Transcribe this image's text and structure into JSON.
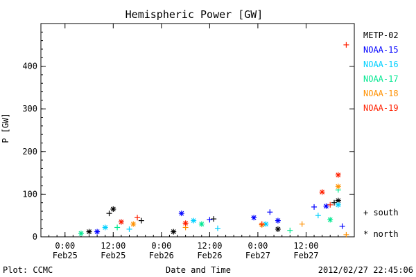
{
  "chart_data": {
    "type": "scatter",
    "title": "Hemispheric Power [GW]",
    "xlabel": "Date and Time",
    "ylabel": "P [GW]",
    "ylim": [
      0,
      500
    ],
    "yticks": [
      0,
      100,
      200,
      300,
      400
    ],
    "xlim": [
      "2012-02-24 18:00",
      "2012-02-28 00:00"
    ],
    "xticks": [
      {
        "at": "2012-02-25 00:00",
        "time": "0:00",
        "date": "Feb25"
      },
      {
        "at": "2012-02-25 12:00",
        "time": "12:00",
        "date": "Feb25"
      },
      {
        "at": "2012-02-26 00:00",
        "time": "0:00",
        "date": "Feb26"
      },
      {
        "at": "2012-02-26 12:00",
        "time": "12:00",
        "date": "Feb26"
      },
      {
        "at": "2012-02-27 00:00",
        "time": "0:00",
        "date": "Feb27"
      },
      {
        "at": "2012-02-27 12:00",
        "time": "12:00",
        "date": "Feb27"
      }
    ],
    "grid": false,
    "legend_position": "right",
    "marker_legend": [
      {
        "marker": "+",
        "label": "south"
      },
      {
        "marker": "*",
        "label": "north"
      }
    ],
    "series": [
      {
        "name": "METP-02",
        "color": "#000000",
        "x": [
          "2012-02-25 06:00",
          "2012-02-25 11:00",
          "2012-02-25 12:00",
          "2012-02-25 19:00",
          "2012-02-26 03:00",
          "2012-02-26 13:00",
          "2012-02-27 05:00",
          "2012-02-27 19:00",
          "2012-02-27 20:00"
        ],
        "y": [
          12,
          55,
          65,
          38,
          12,
          42,
          18,
          80,
          85
        ]
      },
      {
        "name": "NOAA-15",
        "color": "#0000ff",
        "x": [
          "2012-02-25 08:00",
          "2012-02-25 14:00",
          "2012-02-26 05:00",
          "2012-02-26 12:00",
          "2012-02-26 23:00",
          "2012-02-27 03:00",
          "2012-02-27 05:00",
          "2012-02-27 14:00",
          "2012-02-27 17:00",
          "2012-02-27 21:00"
        ],
        "y": [
          12,
          35,
          55,
          40,
          45,
          58,
          38,
          70,
          72,
          25
        ]
      },
      {
        "name": "NOAA-16",
        "color": "#00d0ff",
        "x": [
          "2012-02-25 10:00",
          "2012-02-25 16:00",
          "2012-02-26 08:00",
          "2012-02-26 14:00",
          "2012-02-27 02:00",
          "2012-02-27 15:00",
          "2012-02-27 20:00"
        ],
        "y": [
          22,
          18,
          38,
          20,
          30,
          50,
          75
        ]
      },
      {
        "name": "NOAA-17",
        "color": "#00e890",
        "x": [
          "2012-02-25 04:00",
          "2012-02-25 13:00",
          "2012-02-26 10:00",
          "2012-02-27 08:00",
          "2012-02-27 18:00",
          "2012-02-27 20:00"
        ],
        "y": [
          8,
          22,
          30,
          15,
          40,
          110
        ]
      },
      {
        "name": "NOAA-18",
        "color": "#ff9000",
        "x": [
          "2012-02-25 17:00",
          "2012-02-26 06:00",
          "2012-02-27 01:00",
          "2012-02-27 11:00",
          "2012-02-27 20:00",
          "2012-02-27 22:00"
        ],
        "y": [
          30,
          22,
          28,
          30,
          118,
          5
        ]
      },
      {
        "name": "NOAA-19",
        "color": "#ff2000",
        "x": [
          "2012-02-25 14:00",
          "2012-02-25 18:00",
          "2012-02-26 06:00",
          "2012-02-27 01:00",
          "2012-02-27 16:00",
          "2012-02-27 18:00",
          "2012-02-27 20:00",
          "2012-02-27 22:00"
        ],
        "y": [
          35,
          45,
          32,
          30,
          105,
          75,
          145,
          450
        ]
      }
    ],
    "footer_left": "Plot: CCMC",
    "footer_right": "2012/02/27 22:45:06"
  }
}
